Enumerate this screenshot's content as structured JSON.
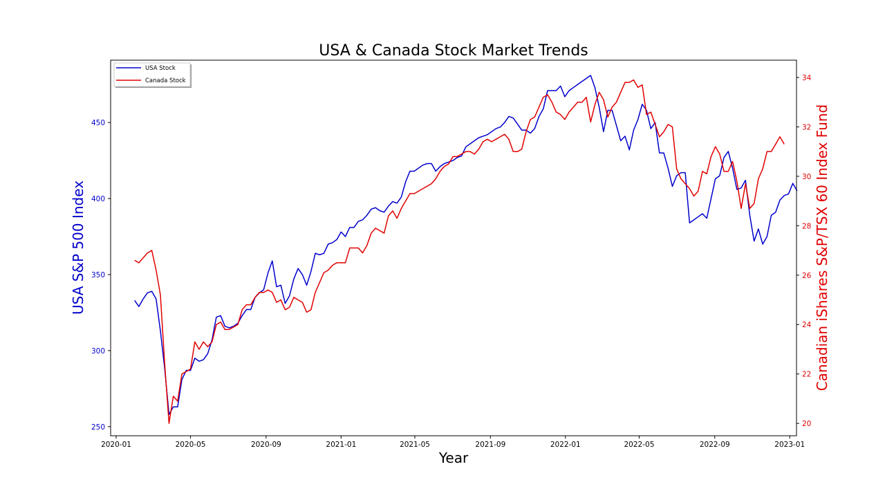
{
  "chart_data": {
    "type": "line",
    "title": "USA & Canada Stock Market Trends",
    "xlabel": "Year",
    "ylabel_left": "USA S&P 500 Index",
    "ylabel_right": "Canadian iShares S&P/TSX 60 Index Fund",
    "xlim": [
      "2019-12-23",
      "2023-01-12"
    ],
    "ylim_left": [
      244,
      491
    ],
    "ylim_right": [
      19.5,
      34.7
    ],
    "x_ticks": [
      "2020-01",
      "2020-05",
      "2020-09",
      "2021-01",
      "2021-05",
      "2021-09",
      "2022-01",
      "2022-05",
      "2022-09",
      "2023-01"
    ],
    "y_ticks_left": [
      250,
      300,
      350,
      400,
      450
    ],
    "y_ticks_right": [
      20,
      22,
      24,
      26,
      28,
      30,
      32,
      34
    ],
    "grid": false,
    "legend_placement": "top-left",
    "colors": {
      "usa": "#0000cc",
      "canada": "#e00000"
    },
    "series": [
      {
        "name": "USA Stock",
        "axis": "left",
        "start": "2020-01-31",
        "step_days": 7,
        "values": [
          333,
          329,
          334,
          338,
          339,
          334,
          313,
          288,
          258,
          263,
          263,
          281,
          287,
          287,
          295,
          293,
          294,
          298,
          307,
          322,
          323,
          316,
          315,
          316,
          318,
          323,
          327,
          327,
          335,
          338,
          340,
          351,
          359,
          342,
          343,
          331,
          336,
          347,
          354,
          350,
          343,
          352,
          364,
          363,
          364,
          370,
          371,
          373,
          378,
          375,
          381,
          381,
          385,
          386,
          389,
          393,
          394,
          392,
          391,
          395,
          398,
          397,
          401,
          411,
          418,
          418,
          420,
          422,
          423,
          423,
          418,
          421,
          423,
          424,
          425,
          427,
          428,
          434,
          436,
          438,
          440,
          441,
          442,
          444,
          446,
          447,
          450,
          454,
          453,
          449,
          445,
          445,
          443,
          446,
          454,
          459,
          471,
          471,
          471,
          474,
          467,
          471,
          473,
          475,
          477,
          479,
          481,
          473,
          460,
          444,
          458,
          458,
          448,
          438,
          441,
          432,
          445,
          452,
          462,
          458,
          446,
          450,
          430,
          430,
          420,
          408,
          415,
          417,
          417,
          384,
          386,
          388,
          390,
          387,
          400,
          413,
          415,
          427,
          431,
          420,
          406,
          407,
          412,
          389,
          372,
          380,
          370,
          375,
          389,
          391,
          399,
          402,
          403,
          410,
          405
        ]
      },
      {
        "name": "Canada Stock",
        "axis": "right",
        "start": "2020-01-31",
        "step_days": 7,
        "values": [
          26.6,
          26.5,
          26.7,
          26.9,
          27.0,
          26.2,
          25.2,
          22.4,
          20.0,
          21.1,
          20.9,
          22.0,
          22.1,
          22.2,
          23.3,
          23.0,
          23.3,
          23.1,
          23.3,
          24.0,
          24.1,
          23.8,
          23.8,
          23.9,
          24.0,
          24.6,
          24.8,
          24.8,
          25.1,
          25.3,
          25.3,
          25.4,
          25.3,
          24.9,
          25.0,
          24.6,
          24.7,
          25.1,
          25.0,
          24.9,
          24.5,
          24.6,
          25.3,
          25.7,
          26.1,
          26.2,
          26.4,
          26.5,
          26.5,
          26.5,
          27.1,
          27.1,
          27.1,
          26.9,
          27.2,
          27.7,
          27.9,
          27.8,
          27.7,
          28.4,
          28.6,
          28.3,
          28.7,
          29.0,
          29.3,
          29.3,
          29.4,
          29.5,
          29.6,
          29.7,
          29.9,
          30.2,
          30.4,
          30.5,
          30.8,
          30.8,
          30.9,
          31.0,
          31.0,
          30.9,
          31.1,
          31.4,
          31.5,
          31.4,
          31.5,
          31.6,
          31.7,
          31.5,
          31.0,
          31.0,
          31.1,
          31.8,
          32.3,
          32.4,
          32.8,
          33.2,
          33.3,
          33.0,
          32.6,
          32.5,
          32.3,
          32.6,
          32.8,
          33.0,
          33.0,
          33.2,
          32.2,
          32.9,
          33.4,
          33.1,
          32.4,
          32.8,
          33.0,
          33.4,
          33.8,
          33.8,
          33.9,
          33.6,
          33.7,
          32.5,
          32.6,
          32.1,
          31.6,
          31.8,
          32.1,
          32.0,
          30.3,
          29.9,
          29.7,
          29.5,
          29.2,
          29.4,
          30.2,
          30.1,
          30.8,
          31.2,
          30.9,
          30.2,
          30.2,
          30.6,
          29.8,
          28.7,
          29.7,
          28.7,
          28.9,
          29.9,
          30.3,
          31.0,
          31.0,
          31.3,
          31.6,
          31.3
        ]
      }
    ]
  }
}
